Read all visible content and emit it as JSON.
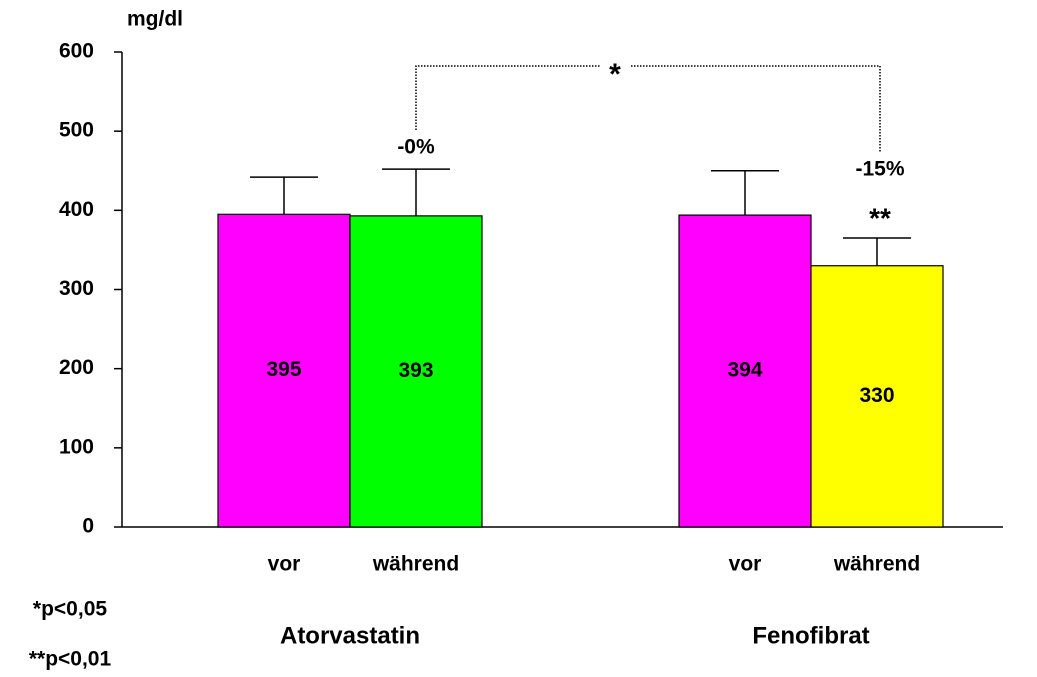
{
  "chart_data": {
    "type": "bar",
    "y_label": "mg/dl",
    "categories": [
      "vor",
      "während",
      "vor",
      "während"
    ],
    "groups": [
      "Atorvastatin",
      "Fenofibrat"
    ],
    "values": [
      395,
      393,
      394,
      330
    ],
    "errors": [
      47,
      59,
      56,
      35
    ],
    "colors": [
      "#ff00ff",
      "#00ff00",
      "#ff00ff",
      "#ffff00"
    ],
    "ylim": [
      0,
      600
    ],
    "yticks": [
      0,
      100,
      200,
      300,
      400,
      500,
      600
    ],
    "annotations": [
      "-0%",
      "-15%",
      "**"
    ],
    "bracket_label": "*",
    "footnotes": [
      "*p<0,05",
      "**p<0,01"
    ]
  }
}
